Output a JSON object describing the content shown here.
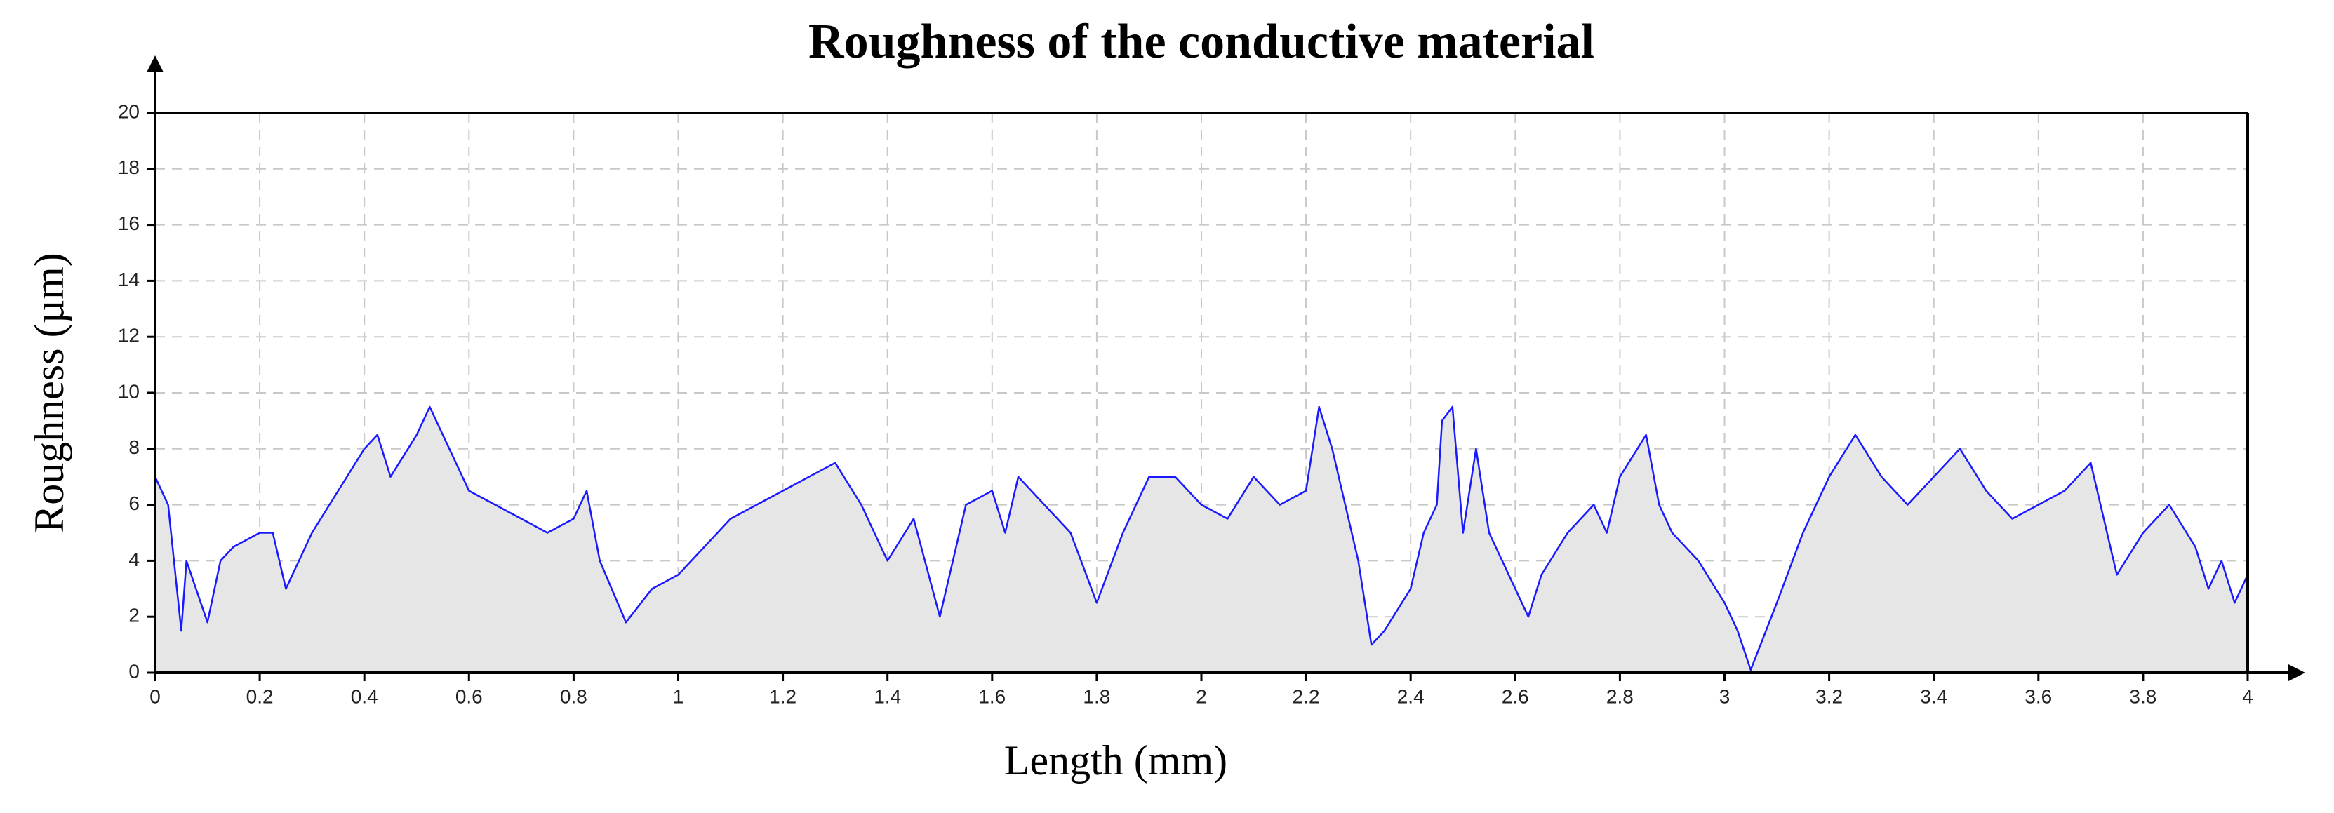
{
  "chart_data": {
    "type": "area",
    "title": "Roughness of the conductive material",
    "x_label": "Length (mm)",
    "y_label": "Roughness (µm)",
    "xlim": [
      0,
      4
    ],
    "ylim": [
      0,
      20
    ],
    "xticks": [
      0,
      0.2,
      0.4,
      0.6,
      0.8,
      1,
      1.2,
      1.4,
      1.6,
      1.8,
      2,
      2.2,
      2.4,
      2.6,
      2.8,
      3,
      3.2,
      3.4,
      3.6,
      3.8,
      4
    ],
    "yticks": [
      0,
      2,
      4,
      6,
      8,
      10,
      12,
      14,
      16,
      18,
      20
    ],
    "grid": true,
    "series": [
      {
        "name": "Roughness",
        "color": "#1a1aff",
        "fill": "#e6e6e6",
        "x": [
          0,
          0.025,
          0.05,
          0.06,
          0.1,
          0.125,
          0.15,
          0.2,
          0.225,
          0.25,
          0.3,
          0.35,
          0.4,
          0.425,
          0.45,
          0.5,
          0.525,
          0.55,
          0.6,
          0.65,
          0.7,
          0.75,
          0.8,
          0.825,
          0.85,
          0.9,
          0.95,
          1.0,
          1.05,
          1.1,
          1.15,
          1.2,
          1.25,
          1.3,
          1.35,
          1.4,
          1.45,
          1.5,
          1.55,
          1.6,
          1.625,
          1.65,
          1.7,
          1.75,
          1.8,
          1.85,
          1.9,
          1.95,
          2.0,
          2.05,
          2.1,
          2.15,
          2.2,
          2.225,
          2.25,
          2.3,
          2.325,
          2.35,
          2.4,
          2.425,
          2.45,
          2.46,
          2.48,
          2.5,
          2.525,
          2.55,
          2.6,
          2.625,
          2.65,
          2.7,
          2.75,
          2.775,
          2.8,
          2.85,
          2.875,
          2.9,
          2.95,
          3.0,
          3.025,
          3.05,
          3.1,
          3.15,
          3.2,
          3.25,
          3.3,
          3.35,
          3.4,
          3.45,
          3.5,
          3.55,
          3.6,
          3.65,
          3.7,
          3.75,
          3.8,
          3.85,
          3.9,
          3.925,
          3.95,
          3.975,
          4.0
        ],
        "values": [
          7,
          6,
          1.5,
          4,
          1.8,
          4,
          4.5,
          5,
          5,
          3,
          5,
          6.5,
          8,
          8.5,
          7,
          8.5,
          9.5,
          8.5,
          6.5,
          6,
          5.5,
          5,
          5.5,
          6.5,
          4,
          1.8,
          3,
          3.5,
          4.5,
          5.5,
          6,
          6.5,
          7,
          7.5,
          6,
          4,
          5.5,
          2,
          6,
          6.5,
          5,
          7,
          6,
          5,
          2.5,
          5,
          7,
          7,
          6,
          5.5,
          7,
          6,
          6.5,
          9.5,
          8,
          4,
          1,
          1.5,
          3,
          5,
          6,
          9,
          9.5,
          5,
          8,
          5,
          3,
          2,
          3.5,
          5,
          6,
          5,
          7,
          8.5,
          6,
          5,
          4,
          2.5,
          1.5,
          0.1,
          2.5,
          5,
          7,
          8.5,
          7,
          6,
          7,
          8,
          6.5,
          5.5,
          6,
          6.5,
          7.5,
          3.5,
          5,
          6,
          4.5,
          3,
          4,
          2.5,
          3.5
        ]
      }
    ]
  }
}
